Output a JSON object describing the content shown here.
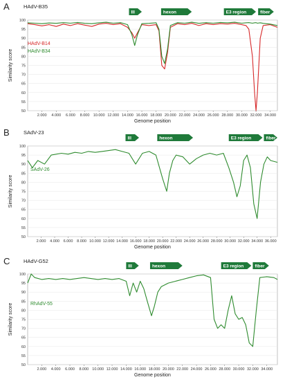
{
  "chart_data": [
    {
      "type": "line",
      "panel": "A",
      "reference": "HAdV-B35",
      "xlabel": "Genome position",
      "ylabel": "Similarity score",
      "xlim": [
        0,
        35000
      ],
      "ylim": [
        50,
        100
      ],
      "xticks": [
        2000,
        4000,
        6000,
        8000,
        10000,
        12000,
        14000,
        16000,
        18000,
        20000,
        22000,
        24000,
        26000,
        28000,
        30000,
        32000,
        34000
      ],
      "xtick_labels": [
        "2.000",
        "4.000",
        "6.000",
        "8.000",
        "10.000",
        "12.000",
        "14.000",
        "16.000",
        "18.000",
        "20.000",
        "22.000",
        "24.000",
        "26.000",
        "28.000",
        "30.000",
        "32.000",
        "34.000"
      ],
      "yticks": [
        50,
        55,
        60,
        65,
        70,
        75,
        80,
        85,
        90,
        95,
        100
      ],
      "genes": [
        {
          "label": "III",
          "start": 14200,
          "end": 16000
        },
        {
          "label": "hexon",
          "start": 18700,
          "end": 23000
        },
        {
          "label": "E3 region",
          "start": 27500,
          "end": 32000
        },
        {
          "label": "fiber",
          "start": 32300,
          "end": 34500
        }
      ],
      "series": [
        {
          "name": "HAdV-B14",
          "color": "#d62728",
          "x": [
            0,
            1000,
            2000,
            3000,
            4000,
            5000,
            6000,
            7000,
            8000,
            9000,
            10000,
            11000,
            12000,
            13000,
            14000,
            14600,
            15000,
            15400,
            16000,
            17000,
            18000,
            18400,
            18800,
            19200,
            19600,
            20000,
            21000,
            22000,
            23000,
            24000,
            25000,
            26000,
            27000,
            28000,
            29000,
            30000,
            30600,
            31000,
            31500,
            31800,
            32000,
            32200,
            32600,
            33000,
            34000,
            35000
          ],
          "y": [
            98,
            97.5,
            96.8,
            97.5,
            96.5,
            97.8,
            97,
            98,
            97.2,
            96.5,
            97.8,
            98.2,
            97.5,
            98,
            96,
            93,
            90,
            93,
            97.5,
            97,
            97.5,
            94,
            75,
            73,
            82,
            96,
            98,
            97.5,
            98.2,
            97,
            98,
            97.5,
            98,
            97.8,
            98.2,
            97.5,
            97,
            95,
            80,
            60,
            50,
            60,
            90,
            97,
            97.5,
            96
          ]
        },
        {
          "name": "HAdV-B34",
          "color": "#2e8b2e",
          "x": [
            0,
            1000,
            2000,
            3000,
            4000,
            5000,
            6000,
            7000,
            8000,
            9000,
            10000,
            11000,
            12000,
            13000,
            14000,
            14600,
            15000,
            15400,
            16000,
            17000,
            18000,
            18400,
            18800,
            19200,
            19600,
            20000,
            21000,
            22000,
            23000,
            24000,
            25000,
            26000,
            27000,
            28000,
            29000,
            30000,
            30600,
            31000,
            31500,
            31800,
            32000,
            32200,
            32600,
            33000,
            34000,
            35000
          ],
          "y": [
            98.5,
            98.3,
            98,
            98.4,
            98.2,
            98.6,
            98.3,
            98.7,
            98.2,
            98,
            98.5,
            98.8,
            98.3,
            98.6,
            97.5,
            92,
            86,
            92,
            98,
            98.2,
            98.5,
            95,
            80,
            76,
            84,
            97,
            98.6,
            98.3,
            98.8,
            98.2,
            98.6,
            98.3,
            98.7,
            98.5,
            98.8,
            98.3,
            98.5,
            98.6,
            98.3,
            98.5,
            98.6,
            98.3,
            98.5,
            98.2,
            97.8,
            97
          ]
        }
      ]
    },
    {
      "type": "line",
      "panel": "B",
      "reference": "SAdV-23",
      "xlabel": "Genome position",
      "ylabel": "Similarity score",
      "xlim": [
        0,
        37000
      ],
      "ylim": [
        50,
        100
      ],
      "xticks": [
        2000,
        4000,
        6000,
        8000,
        10000,
        12000,
        14000,
        16000,
        18000,
        20000,
        22000,
        24000,
        26000,
        28000,
        30000,
        32000,
        34000,
        36000
      ],
      "xtick_labels": [
        "2.000",
        "4.000",
        "6.000",
        "8.000",
        "10.000",
        "12.000",
        "14.000",
        "16.000",
        "18.000",
        "20.000",
        "22.000",
        "24.000",
        "26.000",
        "28.000",
        "30.000",
        "32.000",
        "34.000",
        "36.000"
      ],
      "yticks": [
        50,
        55,
        60,
        65,
        70,
        75,
        80,
        85,
        90,
        95,
        100
      ],
      "genes": [
        {
          "label": "III",
          "start": 14500,
          "end": 16500
        },
        {
          "label": "hexon",
          "start": 19200,
          "end": 24500
        },
        {
          "label": "E3 region",
          "start": 29800,
          "end": 34800
        },
        {
          "label": "fiber",
          "start": 35000,
          "end": 37000
        }
      ],
      "series": [
        {
          "name": "SAdV-26",
          "color": "#2e8b2e",
          "x": [
            0,
            700,
            1500,
            2500,
            3500,
            5000,
            6000,
            7000,
            8000,
            9000,
            10000,
            11000,
            12000,
            13000,
            14000,
            15000,
            16000,
            17000,
            18000,
            19000,
            20000,
            20600,
            21000,
            21500,
            22000,
            23000,
            24000,
            25000,
            26000,
            27000,
            28000,
            29000,
            29800,
            30500,
            31000,
            31500,
            32000,
            32500,
            33000,
            33500,
            34000,
            34500,
            35000,
            35500,
            36000,
            37000
          ],
          "y": [
            92,
            88,
            92,
            90,
            95,
            96,
            95.5,
            96.5,
            96,
            97,
            96.5,
            97,
            97.5,
            98,
            97,
            96,
            90,
            96,
            97,
            95,
            82,
            75,
            85,
            92,
            95,
            94,
            90,
            93,
            95,
            96,
            95,
            96,
            88,
            80,
            72,
            78,
            92,
            95,
            88,
            68,
            60,
            80,
            90,
            94,
            92,
            91
          ]
        }
      ]
    },
    {
      "type": "line",
      "panel": "C",
      "reference": "HAdV-G52",
      "xlabel": "Genome position",
      "ylabel": "Similarity score",
      "xlim": [
        0,
        35500
      ],
      "ylim": [
        50,
        100
      ],
      "xticks": [
        2000,
        4000,
        6000,
        8000,
        10000,
        12000,
        14000,
        16000,
        18000,
        20000,
        22000,
        24000,
        26000,
        28000,
        30000,
        32000,
        34000
      ],
      "xtick_labels": [
        "2.000",
        "4.000",
        "6.000",
        "8.000",
        "10.000",
        "12.000",
        "14.000",
        "16.000",
        "18.000",
        "20.000",
        "22.000",
        "24.000",
        "26.000",
        "28.000",
        "30.000",
        "32.000",
        "34.000"
      ],
      "yticks": [
        50,
        55,
        60,
        65,
        70,
        75,
        80,
        85,
        90,
        95,
        100
      ],
      "genes": [
        {
          "label": "III",
          "start": 14000,
          "end": 15800
        },
        {
          "label": "hexon",
          "start": 17400,
          "end": 22000
        },
        {
          "label": "E3 region",
          "start": 27500,
          "end": 31800
        },
        {
          "label": "fiber",
          "start": 32000,
          "end": 34300
        }
      ],
      "series": [
        {
          "name": "RhAdV-55",
          "color": "#2e8b2e",
          "x": [
            0,
            500,
            1000,
            2000,
            3000,
            4000,
            5000,
            6000,
            7000,
            8000,
            9000,
            10000,
            11000,
            12000,
            13000,
            14000,
            14500,
            15000,
            15500,
            16000,
            16500,
            17000,
            17600,
            18000,
            18500,
            19000,
            20000,
            21000,
            22000,
            23000,
            24000,
            25000,
            26000,
            26500,
            27000,
            27500,
            28000,
            28500,
            29000,
            29500,
            30000,
            30500,
            31000,
            31500,
            32000,
            32500,
            33000,
            34000,
            35000,
            35500
          ],
          "y": [
            95,
            100,
            98,
            97,
            97.5,
            97,
            97.5,
            97,
            97.5,
            98,
            97.5,
            97,
            97.5,
            97,
            97.5,
            96,
            88,
            95,
            90,
            96,
            92,
            85,
            77,
            82,
            90,
            93,
            95,
            96,
            97,
            98,
            99,
            99.5,
            98,
            75,
            70,
            72,
            70,
            80,
            88,
            78,
            75,
            76,
            72,
            62,
            60,
            80,
            98,
            98.5,
            98,
            97
          ]
        }
      ]
    }
  ]
}
